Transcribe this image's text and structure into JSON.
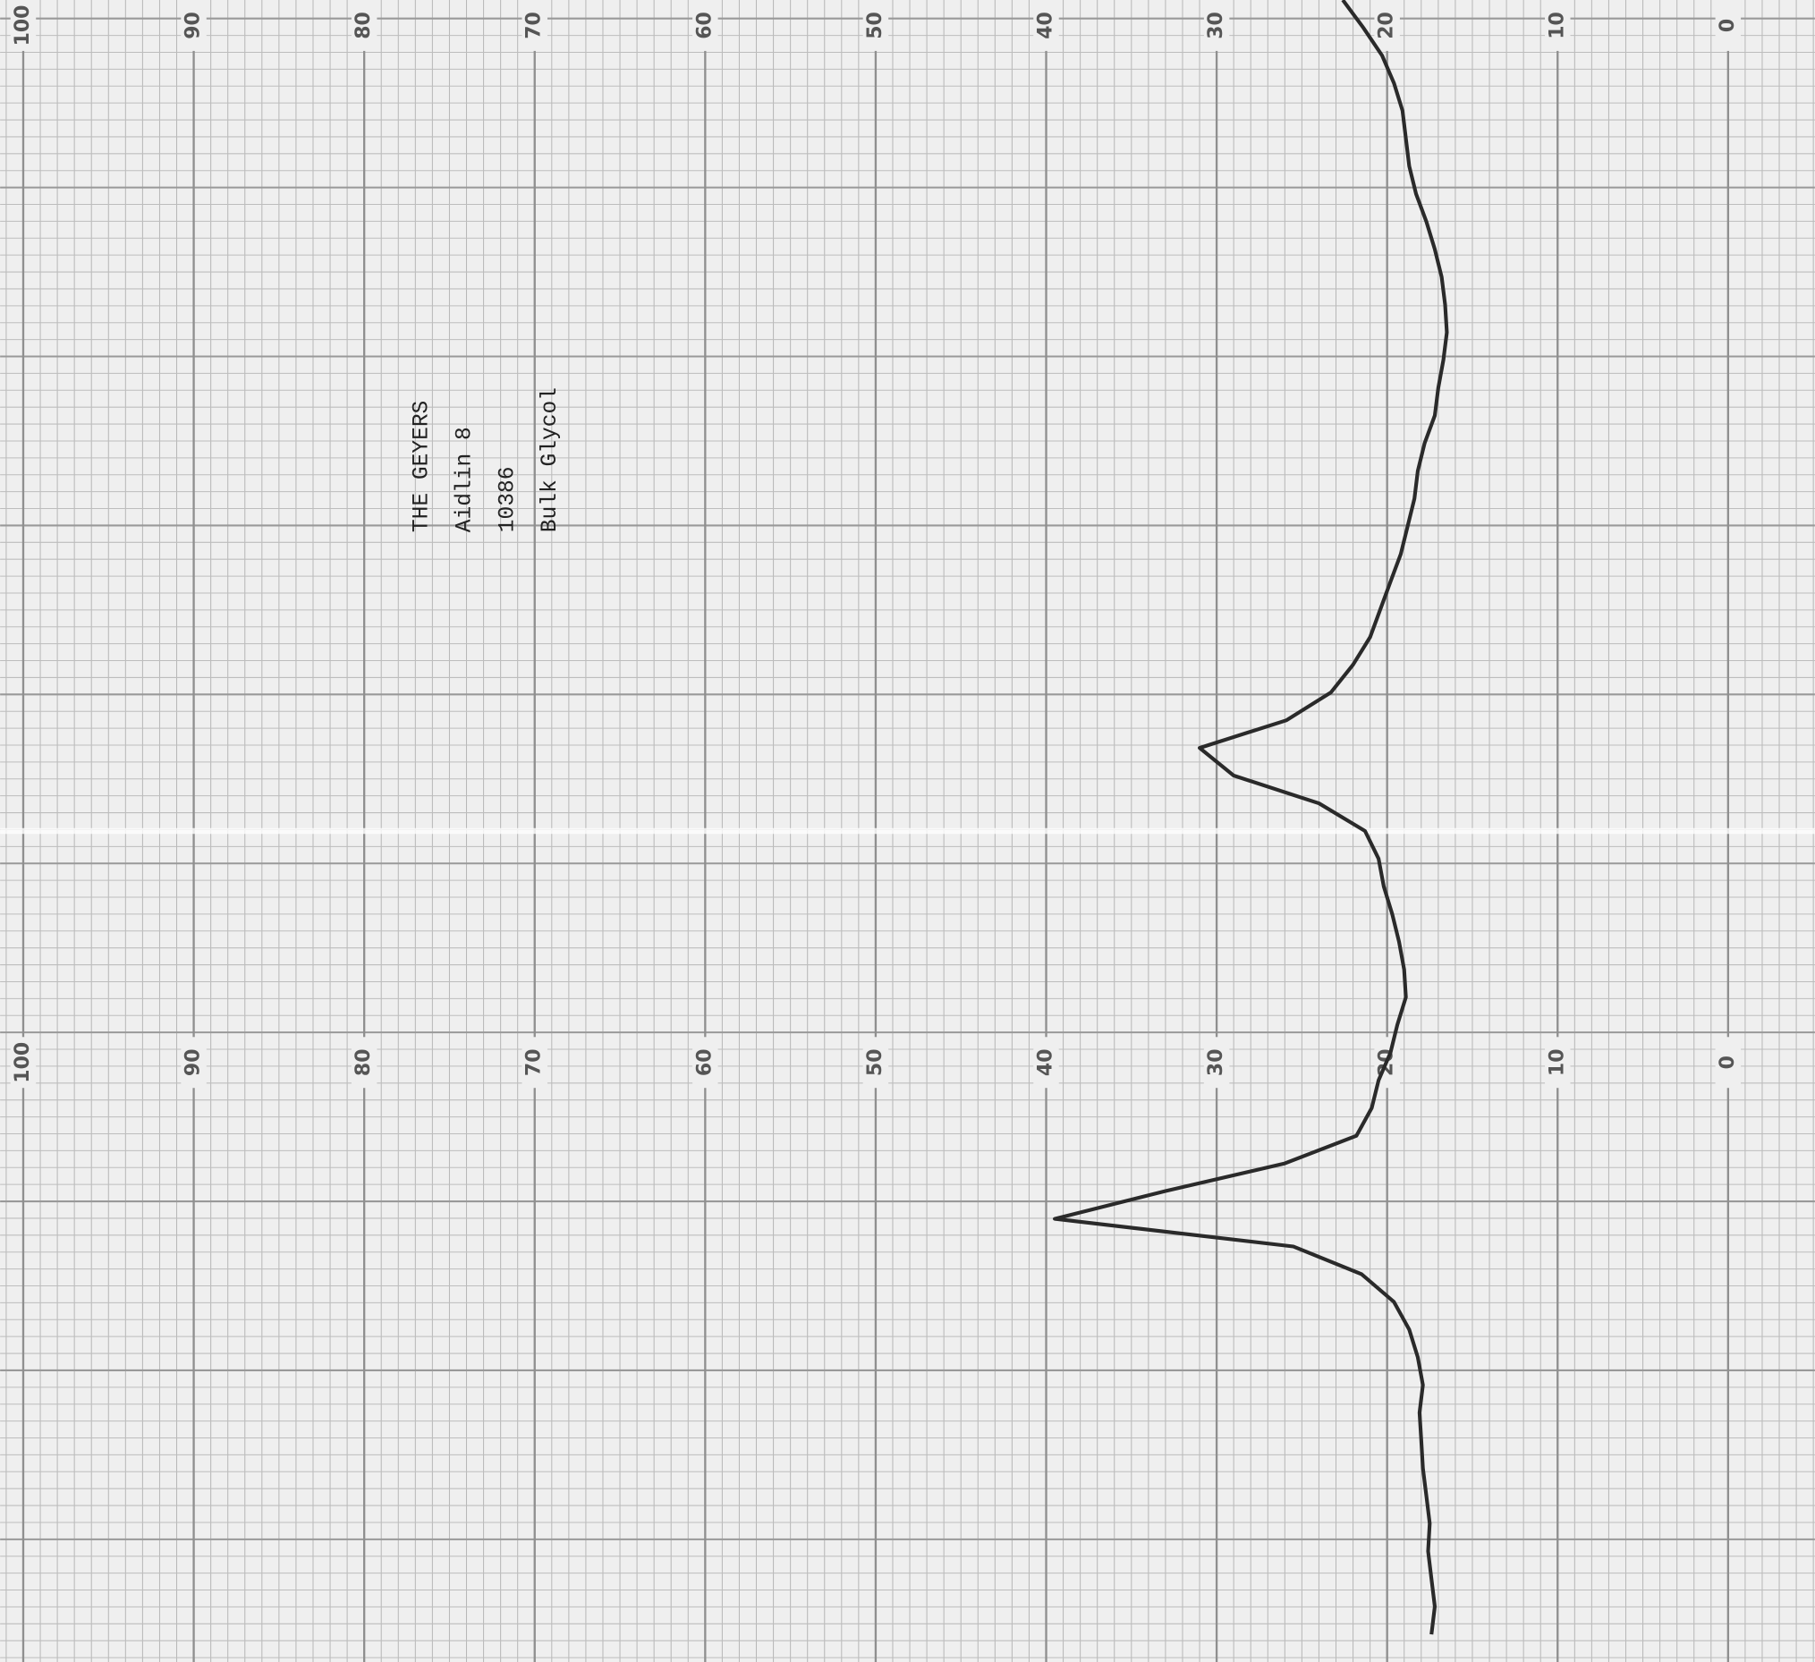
{
  "chart_data": {
    "type": "line",
    "annotations": [
      "THE GEYERS",
      "Aidlin 8",
      "10386",
      "Bulk Glycol"
    ],
    "ylim": [
      0,
      100
    ],
    "yticks": [
      100,
      90,
      80,
      70,
      60,
      50,
      40,
      30,
      20,
      10,
      0
    ],
    "grid": true,
    "color": "#2a2a2a",
    "values": [
      22.6,
      21.4,
      20.3,
      19.6,
      19.1,
      18.9,
      18.7,
      18.3,
      17.7,
      17.2,
      16.8,
      16.6,
      16.5,
      16.7,
      17.0,
      17.2,
      17.8,
      18.2,
      18.4,
      18.8,
      19.2,
      19.8,
      20.4,
      21.0,
      22.0,
      23.3,
      25.9,
      31.0,
      29.0,
      24.0,
      21.3,
      20.5,
      20.2,
      19.7,
      19.3,
      19.0,
      18.9,
      19.4,
      19.8,
      20.5,
      20.9,
      21.8,
      26.0,
      33.0,
      39.5,
      25.5,
      21.5,
      19.6,
      18.7,
      18.2,
      17.9,
      18.1,
      18.0,
      17.9,
      17.7,
      17.5,
      17.6,
      17.4,
      17.2,
      17.4
    ]
  }
}
